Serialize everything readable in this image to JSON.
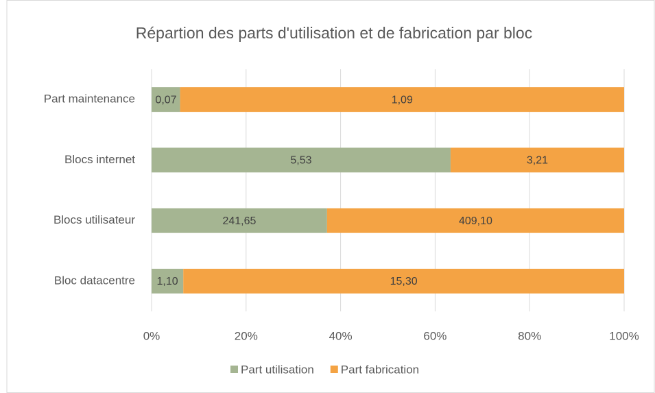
{
  "chart_data": {
    "type": "bar",
    "orientation": "horizontal",
    "stacking": "percent",
    "title": "Répartion des parts d'utilisation et de fabrication par bloc",
    "categories": [
      "Part maintenance",
      "Blocs internet",
      "Blocs utilisateur",
      "Bloc datacentre"
    ],
    "series": [
      {
        "name": "Part utilisation",
        "color": "#a5b592",
        "values": [
          0.07,
          5.53,
          241.65,
          1.1
        ],
        "value_labels": [
          "0,07",
          "5,53",
          "241,65",
          "1,10"
        ]
      },
      {
        "name": "Part fabrication",
        "color": "#f4a344",
        "values": [
          1.09,
          3.21,
          409.1,
          15.3
        ],
        "value_labels": [
          "1,09",
          "3,21",
          "409,10",
          "15,30"
        ]
      }
    ],
    "xlim": [
      0,
      100
    ],
    "xticks": [
      {
        "value": 0,
        "label": "0%"
      },
      {
        "value": 20,
        "label": "20%"
      },
      {
        "value": 40,
        "label": "40%"
      },
      {
        "value": 60,
        "label": "60%"
      },
      {
        "value": 80,
        "label": "80%"
      },
      {
        "value": 100,
        "label": "100%"
      }
    ],
    "grid": true,
    "legend": "bottom"
  }
}
